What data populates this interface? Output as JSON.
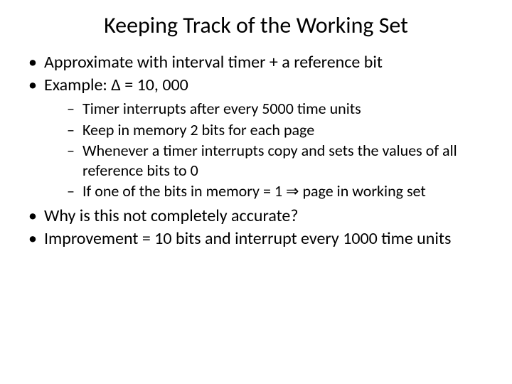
{
  "title": "Keeping Track of the Working Set",
  "bullets": {
    "b1": "Approximate with interval timer + a reference bit",
    "b2": "Example: Δ = 10, 000",
    "sub": {
      "s1": "Timer interrupts after every 5000 time units",
      "s2": "Keep in memory 2 bits for each page",
      "s3": "Whenever a timer interrupts copy and sets the values of all reference bits to 0",
      "s4": "If one of the bits in memory = 1 ⇒ page in working set"
    },
    "b3": "Why is this not completely accurate?",
    "b4": "Improvement = 10 bits and interrupt every 1000 time units"
  },
  "style": {
    "background_color": "#ffffff",
    "text_color": "#000000",
    "title_fontsize": 32,
    "level1_fontsize": 24,
    "level2_fontsize": 22,
    "font_family": "Calibri"
  }
}
